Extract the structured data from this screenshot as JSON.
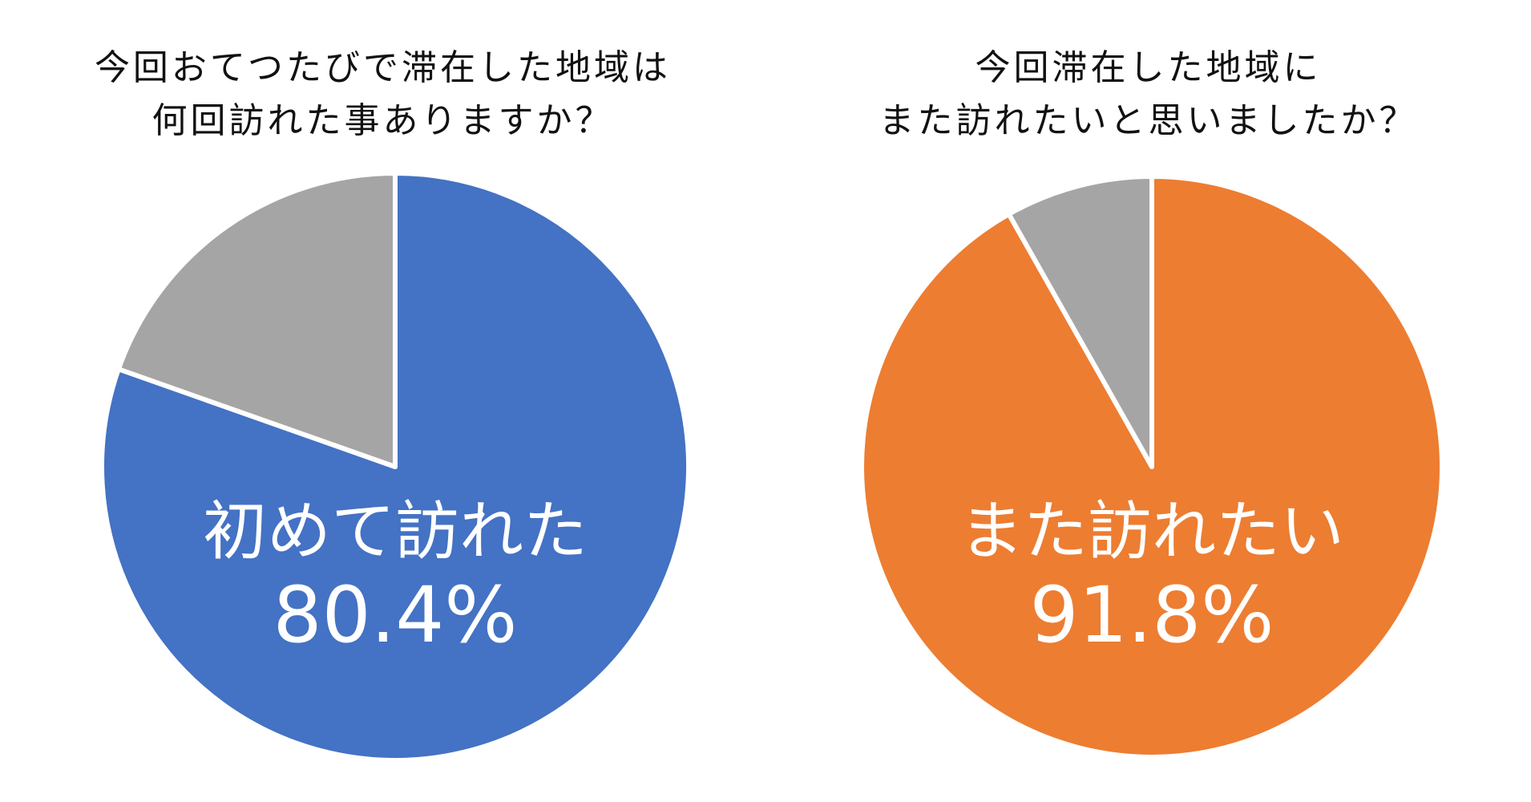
{
  "chart_data": [
    {
      "type": "pie",
      "title_lines": [
        "今回おてつたびで滞在した地域は",
        "何回訪れた事ありますか？"
      ],
      "slices": [
        {
          "label": "初めて訪れた",
          "value": 80.4,
          "value_text": "80.4%",
          "color": "#4472C4"
        },
        {
          "label": "",
          "value": 19.6,
          "value_text": "",
          "color": "#A5A5A5"
        }
      ],
      "start_angle_deg": 0,
      "direction": "clockwise"
    },
    {
      "type": "pie",
      "title_lines": [
        "今回滞在した地域に",
        "また訪れたいと思いましたか？"
      ],
      "slices": [
        {
          "label": "また訪れたい",
          "value": 91.8,
          "value_text": "91.8%",
          "color": "#ED7D31"
        },
        {
          "label": "",
          "value": 8.2,
          "value_text": "",
          "color": "#A5A5A5"
        }
      ],
      "start_angle_deg": 0,
      "direction": "clockwise"
    }
  ]
}
